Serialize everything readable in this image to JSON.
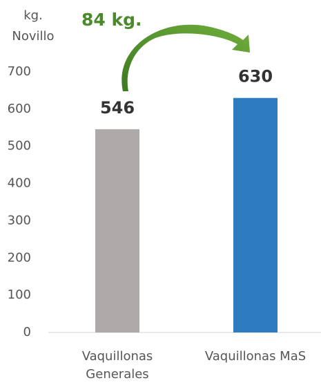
{
  "chart_data": {
    "type": "bar",
    "y_label": "kg. Novillo",
    "annotation": "84 kg.",
    "categories": [
      "Vaquillonas Generales",
      "Vaquillonas MaS"
    ],
    "values": [
      546,
      630
    ],
    "colors": [
      "#aeaaa9",
      "#2e7bbf"
    ],
    "ylim": [
      0,
      700
    ],
    "yticks": [
      0,
      100,
      200,
      300,
      400,
      500,
      600,
      700
    ],
    "grid": false
  }
}
